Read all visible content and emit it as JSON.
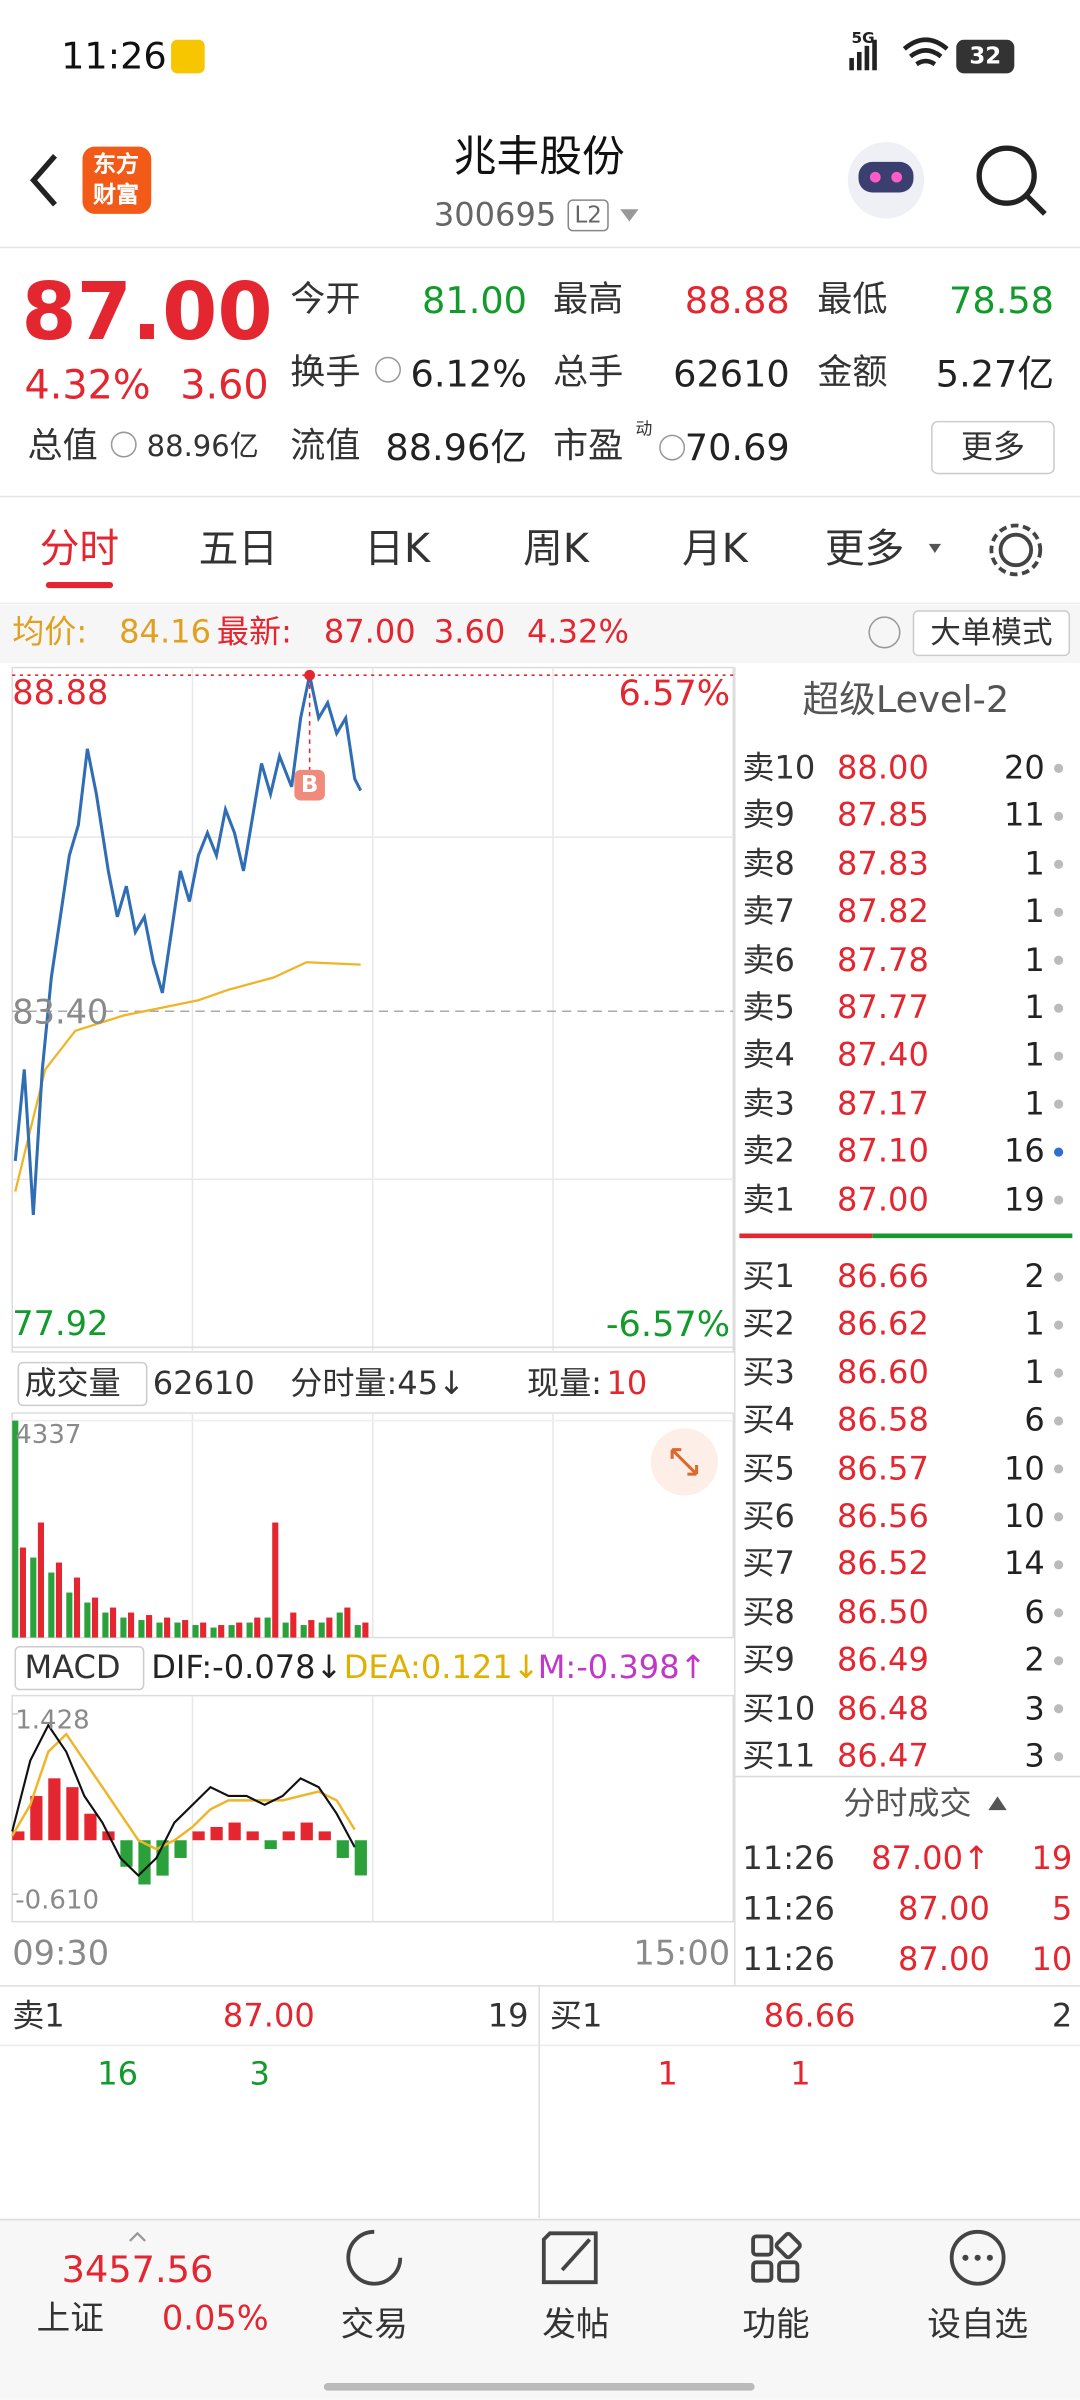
{
  "status_bar": {
    "time": "11:26",
    "network": "5G",
    "battery": "32"
  },
  "header": {
    "logo": [
      "东方",
      "财富"
    ],
    "title": "兆丰股份",
    "code": "300695",
    "badge": "L2"
  },
  "quote": {
    "price": "87.00",
    "change_pct": "4.32%",
    "change": "3.60",
    "total_value_label": "总值",
    "total_value": "88.96亿",
    "more": "更多",
    "fields": [
      {
        "label": "今开",
        "value": "81.00",
        "color": "#139a2c"
      },
      {
        "label": "最高",
        "value": "88.88",
        "color": "#e3262f"
      },
      {
        "label": "最低",
        "value": "78.58",
        "color": "#139a2c"
      },
      {
        "label": "换手",
        "value": "6.12%",
        "color": "#222"
      },
      {
        "label": "总手",
        "value": "62610",
        "color": "#222"
      },
      {
        "label": "金额",
        "value": "5.27亿",
        "color": "#222"
      },
      {
        "label": "流值",
        "value": "88.96亿",
        "color": "#222"
      },
      {
        "label": "市盈",
        "label_sup": "动",
        "value": "70.69",
        "color": "#222"
      }
    ]
  },
  "tabs": [
    "分时",
    "五日",
    "日K",
    "周K",
    "月K",
    "更多"
  ],
  "info_bar": {
    "avg_label": "均价:",
    "avg": "84.16",
    "latest_label": "最新:",
    "latest": "87.00",
    "change": "3.60",
    "change_pct": "4.32%",
    "mode": "大单模式"
  },
  "intraday": {
    "xlim": [
      0,
      240
    ],
    "ylim": [
      77.92,
      88.88
    ],
    "yticks": [
      77.92,
      {
        "value": 83.4,
        "label": "83.40"
      },
      88.88
    ],
    "pct_labels": [
      "6.57%",
      "-6.57%"
    ],
    "time_labels": [
      "09:30",
      "15:00"
    ],
    "marker": "B",
    "price": {
      "x": [
        1,
        4,
        7,
        10,
        13,
        16,
        19,
        22,
        25,
        28,
        32,
        35,
        38,
        41,
        44,
        47,
        50,
        53,
        56,
        59,
        62,
        65,
        68,
        71,
        74,
        77,
        80,
        83,
        86,
        89,
        93,
        96,
        99,
        102,
        105,
        108,
        111,
        114,
        116
      ],
      "values": [
        80.96,
        82.45,
        80.08,
        82.45,
        83.95,
        84.94,
        85.94,
        86.44,
        87.68,
        86.94,
        85.69,
        84.94,
        85.44,
        84.69,
        84.94,
        84.2,
        83.7,
        84.69,
        85.69,
        85.19,
        85.94,
        86.31,
        85.94,
        86.69,
        86.31,
        85.69,
        86.56,
        87.44,
        86.94,
        87.56,
        87.06,
        88.18,
        88.88,
        88.18,
        88.43,
        87.93,
        88.18,
        87.19,
        87.0
      ]
    },
    "avg": {
      "x": [
        1,
        6,
        11,
        21,
        37,
        62,
        72,
        87,
        98,
        116
      ],
      "values": [
        80.46,
        81.46,
        82.45,
        83.08,
        83.33,
        83.58,
        83.75,
        83.95,
        84.2,
        84.16
      ]
    }
  },
  "volume": {
    "label": "成交量",
    "total": "62610",
    "tick_volume": "分时量:45↓",
    "current_label": "现量:",
    "current": "10",
    "ylim": [
      0,
      4337
    ],
    "yticks": [
      4337
    ],
    "x": [
      0,
      6,
      12,
      18,
      24,
      30,
      36,
      42,
      48,
      54,
      60,
      66,
      72,
      78,
      84,
      90,
      96,
      102,
      108,
      114
    ],
    "up_values": [
      1800,
      2300,
      1500,
      1200,
      800,
      600,
      500,
      450,
      400,
      350,
      300,
      250,
      300,
      400,
      2300,
      500,
      350,
      400,
      600,
      300
    ],
    "down_values": [
      4337,
      1600,
      1300,
      900,
      700,
      500,
      400,
      350,
      300,
      300,
      250,
      200,
      250,
      300,
      400,
      300,
      250,
      300,
      500,
      250
    ]
  },
  "macd": {
    "label": "MACD",
    "dif": "DIF:-0.078↓",
    "dea": "DEA:0.121↓",
    "m": "M:-0.398↑",
    "ylim": [
      -0.61,
      1.428
    ],
    "yticks": [
      {
        "value": -0.61,
        "label": "-0.610"
      },
      1.428
    ],
    "x": [
      0,
      6,
      12,
      18,
      24,
      30,
      36,
      42,
      48,
      54,
      60,
      66,
      72,
      78,
      84,
      90,
      96,
      102,
      108,
      114
    ],
    "hist": [
      0.1,
      0.5,
      0.7,
      0.6,
      0.3,
      0.1,
      -0.3,
      -0.5,
      -0.4,
      -0.2,
      0.1,
      0.15,
      0.2,
      0.1,
      -0.1,
      0.1,
      0.2,
      0.1,
      -0.2,
      -0.398
    ],
    "dif_values": [
      0.1,
      0.9,
      1.3,
      1.0,
      0.5,
      0.2,
      -0.2,
      -0.4,
      -0.2,
      0.2,
      0.4,
      0.6,
      0.5,
      0.5,
      0.4,
      0.5,
      0.7,
      0.6,
      0.3,
      -0.078
    ],
    "dea_values": [
      0.05,
      0.4,
      1.0,
      1.2,
      0.9,
      0.6,
      0.3,
      0.0,
      -0.1,
      0.0,
      0.15,
      0.35,
      0.45,
      0.45,
      0.45,
      0.45,
      0.5,
      0.55,
      0.45,
      0.121
    ]
  },
  "order_book": {
    "title": "超级Level-2",
    "asks": [
      {
        "label": "卖10",
        "price": "88.00",
        "qty": "20"
      },
      {
        "label": "卖9",
        "price": "87.85",
        "qty": "11"
      },
      {
        "label": "卖8",
        "price": "87.83",
        "qty": "1"
      },
      {
        "label": "卖7",
        "price": "87.82",
        "qty": "1"
      },
      {
        "label": "卖6",
        "price": "87.78",
        "qty": "1"
      },
      {
        "label": "卖5",
        "price": "87.77",
        "qty": "1"
      },
      {
        "label": "卖4",
        "price": "87.40",
        "qty": "1"
      },
      {
        "label": "卖3",
        "price": "87.17",
        "qty": "1"
      },
      {
        "label": "卖2",
        "price": "87.10",
        "qty": "16",
        "dot_color": "#2f6fd0"
      },
      {
        "label": "卖1",
        "price": "87.00",
        "qty": "19"
      }
    ],
    "bids": [
      {
        "label": "买1",
        "price": "86.66",
        "qty": "2"
      },
      {
        "label": "买2",
        "price": "86.62",
        "qty": "1"
      },
      {
        "label": "买3",
        "price": "86.60",
        "qty": "1"
      },
      {
        "label": "买4",
        "price": "86.58",
        "qty": "6"
      },
      {
        "label": "买5",
        "price": "86.57",
        "qty": "10"
      },
      {
        "label": "买6",
        "price": "86.56",
        "qty": "10"
      },
      {
        "label": "买7",
        "price": "86.52",
        "qty": "14"
      },
      {
        "label": "买8",
        "price": "86.50",
        "qty": "6"
      },
      {
        "label": "买9",
        "price": "86.49",
        "qty": "2"
      },
      {
        "label": "买10",
        "price": "86.48",
        "qty": "3"
      },
      {
        "label": "买11",
        "price": "86.47",
        "qty": "3"
      }
    ],
    "trades_title": "分时成交",
    "trades": [
      {
        "time": "11:26",
        "price": "87.00↑",
        "qty": "19"
      },
      {
        "time": "11:26",
        "price": "87.00",
        "qty": "5"
      },
      {
        "time": "11:26",
        "price": "87.00",
        "qty": "10"
      }
    ]
  },
  "level1": {
    "ask": {
      "label": "卖1",
      "price": "87.00",
      "qty": "19",
      "queue": [
        "16",
        "3"
      ]
    },
    "bid": {
      "label": "买1",
      "price": "86.66",
      "qty": "2",
      "queue": [
        "1",
        "1"
      ]
    }
  },
  "nav": {
    "index": {
      "value": "3457.56",
      "name": "上证",
      "change_pct": "0.05%"
    },
    "items": [
      "交易",
      "发帖",
      "功能",
      "设自选"
    ]
  }
}
